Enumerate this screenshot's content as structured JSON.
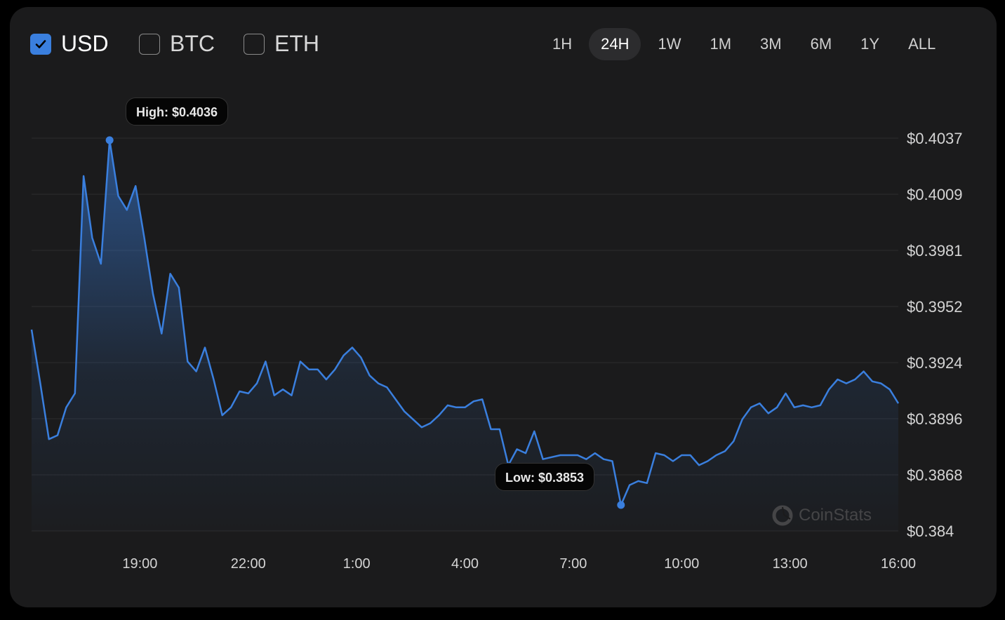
{
  "currencies": [
    {
      "label": "USD",
      "checked": true
    },
    {
      "label": "BTC",
      "checked": false
    },
    {
      "label": "ETH",
      "checked": false
    }
  ],
  "time_ranges": [
    {
      "label": "1H"
    },
    {
      "label": "24H",
      "active": true
    },
    {
      "label": "1W"
    },
    {
      "label": "1M"
    },
    {
      "label": "3M"
    },
    {
      "label": "6M"
    },
    {
      "label": "1Y"
    },
    {
      "label": "ALL"
    }
  ],
  "watermark": "CoinStats",
  "colors": {
    "accent": "#3a7fde",
    "background": "#1b1b1c"
  },
  "chart_data": {
    "type": "area",
    "x_range": [
      "16:00",
      "16:00"
    ],
    "x_ticks": [
      "19:00",
      "22:00",
      "1:00",
      "4:00",
      "7:00",
      "10:00",
      "13:00",
      "16:00"
    ],
    "y_ticks": [
      "$0.4037",
      "$0.4009",
      "$0.3981",
      "$0.3952",
      "$0.3924",
      "$0.3896",
      "$0.3868",
      "$0.384"
    ],
    "ylim": [
      0.384,
      0.4037
    ],
    "grid": true,
    "high": {
      "label": "High: $0.4036",
      "value": 0.4036
    },
    "low": {
      "label": "Low: $0.3853",
      "value": 0.3853
    },
    "values": [
      0.3941,
      0.3914,
      0.3886,
      0.3888,
      0.3902,
      0.3909,
      0.4018,
      0.3987,
      0.3974,
      0.4036,
      0.4008,
      0.4001,
      0.4013,
      0.3987,
      0.3959,
      0.3939,
      0.3969,
      0.3962,
      0.3925,
      0.392,
      0.3932,
      0.3916,
      0.3898,
      0.3902,
      0.391,
      0.3909,
      0.3914,
      0.3925,
      0.3908,
      0.3911,
      0.3908,
      0.3925,
      0.3921,
      0.3921,
      0.3916,
      0.3921,
      0.3928,
      0.3932,
      0.3927,
      0.3918,
      0.3914,
      0.3912,
      0.3906,
      0.39,
      0.3896,
      0.3892,
      0.3894,
      0.3898,
      0.3903,
      0.3902,
      0.3902,
      0.3905,
      0.3906,
      0.3891,
      0.3891,
      0.3873,
      0.3881,
      0.3879,
      0.389,
      0.3876,
      0.3877,
      0.3878,
      0.3878,
      0.3878,
      0.3876,
      0.3879,
      0.3876,
      0.3875,
      0.3853,
      0.3863,
      0.3865,
      0.3864,
      0.3879,
      0.3878,
      0.3875,
      0.3878,
      0.3878,
      0.3873,
      0.3875,
      0.3878,
      0.388,
      0.3885,
      0.3896,
      0.3902,
      0.3904,
      0.3899,
      0.3902,
      0.3909,
      0.3902,
      0.3903,
      0.3902,
      0.3903,
      0.3911,
      0.3916,
      0.3914,
      0.3916,
      0.392,
      0.3915,
      0.3914,
      0.3911,
      0.3904
    ]
  }
}
